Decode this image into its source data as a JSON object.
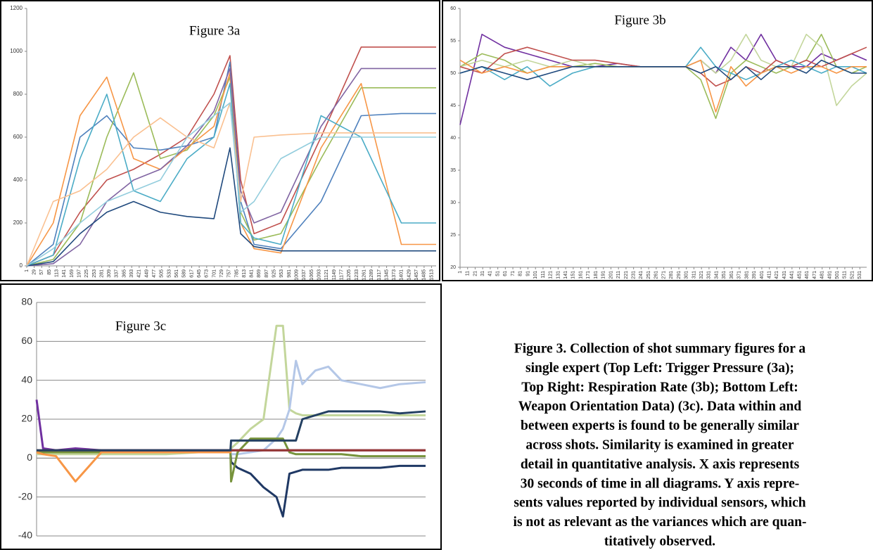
{
  "chart_data": [
    {
      "type": "line",
      "title": "Figure 3a",
      "ylim": [
        0,
        1200
      ],
      "yticks": [
        0,
        200,
        400,
        600,
        800,
        1000,
        1200
      ],
      "xlim": [
        1,
        1530
      ],
      "xticks": [
        1,
        29,
        57,
        85,
        113,
        141,
        169,
        197,
        225,
        253,
        281,
        309,
        337,
        365,
        393,
        421,
        449,
        477,
        505,
        533,
        561,
        589,
        617,
        645,
        673,
        701,
        729,
        757,
        785,
        813,
        841,
        869,
        897,
        925,
        953,
        981,
        1009,
        1037,
        1065,
        1093,
        1121,
        1149,
        1177,
        1205,
        1233,
        1261,
        1289,
        1317,
        1345,
        1373,
        1401,
        1429,
        1457,
        1485,
        1513
      ],
      "grid": false,
      "x": [
        1,
        100,
        200,
        300,
        400,
        500,
        600,
        700,
        760,
        800,
        850,
        950,
        1100,
        1250,
        1400,
        1530
      ],
      "series": [
        {
          "color": "#c0504d",
          "values": [
            0,
            50,
            250,
            400,
            450,
            520,
            600,
            800,
            980,
            400,
            150,
            200,
            600,
            1020,
            1020,
            1020
          ]
        },
        {
          "color": "#4f81bd",
          "values": [
            0,
            100,
            600,
            700,
            550,
            540,
            560,
            600,
            950,
            300,
            100,
            80,
            300,
            700,
            710,
            710
          ]
        },
        {
          "color": "#9bbb59",
          "values": [
            0,
            30,
            200,
            600,
            900,
            500,
            540,
            700,
            880,
            250,
            120,
            150,
            500,
            830,
            830,
            830
          ]
        },
        {
          "color": "#f79646",
          "values": [
            0,
            200,
            700,
            880,
            500,
            450,
            550,
            650,
            900,
            200,
            80,
            60,
            550,
            850,
            100,
            100
          ]
        },
        {
          "color": "#8064a2",
          "values": [
            0,
            10,
            100,
            300,
            400,
            450,
            560,
            720,
            920,
            350,
            200,
            250,
            650,
            920,
            920,
            920
          ]
        },
        {
          "color": "#4bacc6",
          "values": [
            0,
            50,
            500,
            800,
            350,
            300,
            500,
            600,
            850,
            200,
            130,
            100,
            700,
            600,
            200,
            200
          ]
        },
        {
          "color": "#fac090",
          "values": [
            0,
            300,
            350,
            450,
            600,
            690,
            600,
            550,
            760,
            300,
            600,
            610,
            620,
            620,
            620,
            620
          ]
        },
        {
          "color": "#1f497d",
          "values": [
            0,
            20,
            150,
            250,
            300,
            250,
            230,
            220,
            550,
            150,
            90,
            70,
            70,
            70,
            70,
            70
          ]
        },
        {
          "color": "#93cddd",
          "values": [
            0,
            80,
            200,
            300,
            350,
            400,
            600,
            700,
            760,
            250,
            300,
            500,
            600,
            600,
            600,
            600
          ]
        }
      ]
    },
    {
      "type": "line",
      "title": "Figure 3b",
      "ylim": [
        20,
        60
      ],
      "yticks": [
        20,
        25,
        30,
        35,
        40,
        45,
        50,
        55,
        60
      ],
      "xlim": [
        1,
        540
      ],
      "xticks": [
        1,
        11,
        21,
        31,
        41,
        51,
        61,
        71,
        81,
        91,
        101,
        111,
        121,
        131,
        141,
        151,
        161,
        171,
        181,
        191,
        201,
        211,
        221,
        231,
        241,
        251,
        261,
        271,
        281,
        291,
        301,
        311,
        321,
        331,
        341,
        351,
        361,
        371,
        381,
        391,
        401,
        411,
        421,
        431,
        441,
        451,
        461,
        471,
        481,
        491,
        501,
        511,
        521,
        531
      ],
      "grid": false,
      "x": [
        1,
        30,
        60,
        90,
        120,
        150,
        180,
        210,
        240,
        270,
        300,
        320,
        340,
        360,
        380,
        400,
        420,
        440,
        460,
        480,
        500,
        520,
        540
      ],
      "series": [
        {
          "color": "#7030a0",
          "values": [
            42,
            56,
            54,
            53,
            52,
            51,
            51,
            51.5,
            51,
            51,
            51,
            52,
            50,
            54,
            52,
            56,
            52,
            51,
            51,
            53,
            52,
            53,
            52
          ]
        },
        {
          "color": "#9bbb59",
          "values": [
            51,
            53,
            52,
            50,
            51,
            51,
            51.5,
            51,
            51,
            51,
            51,
            49,
            43,
            50,
            52,
            51,
            50,
            51,
            52,
            56,
            51,
            50,
            51
          ]
        },
        {
          "color": "#c3d69b",
          "values": [
            51,
            52,
            51,
            52,
            51,
            52,
            51,
            51,
            51,
            51,
            51,
            52,
            50,
            52,
            56,
            52,
            51,
            51,
            56,
            54,
            45,
            48,
            50
          ]
        },
        {
          "color": "#c0504d",
          "values": [
            51,
            50,
            53,
            54,
            53,
            52,
            52,
            51.5,
            51,
            51,
            51,
            50,
            48,
            49,
            51,
            50,
            52,
            51,
            52,
            51,
            52,
            53,
            54
          ]
        },
        {
          "color": "#4bacc6",
          "values": [
            50,
            51,
            49,
            51,
            48,
            50,
            51,
            51,
            51,
            51,
            51,
            54,
            51,
            50,
            49,
            50,
            51,
            52,
            51,
            50,
            51,
            51,
            50
          ]
        },
        {
          "color": "#f79646",
          "values": [
            52,
            50,
            51,
            50,
            51,
            51,
            51,
            51,
            51,
            51,
            51,
            52,
            44,
            51,
            48,
            50,
            51,
            50,
            51,
            51,
            50,
            51,
            51
          ]
        },
        {
          "color": "#1f497d",
          "values": [
            50,
            51,
            50,
            49,
            50,
            51,
            51,
            51,
            51,
            51,
            51,
            50,
            51,
            49,
            51,
            49,
            51,
            51,
            50,
            52,
            51,
            50,
            50
          ]
        }
      ]
    },
    {
      "type": "line",
      "title": "Figure 3c",
      "ylim": [
        -40,
        80
      ],
      "yticks": [
        -40,
        -20,
        0,
        20,
        40,
        60,
        80
      ],
      "xlim": [
        0,
        600
      ],
      "grid": true,
      "x": [
        0,
        10,
        30,
        60,
        100,
        150,
        200,
        250,
        299,
        300,
        310,
        330,
        350,
        370,
        380,
        390,
        400,
        410,
        430,
        450,
        470,
        500,
        530,
        560,
        600
      ],
      "series": [
        {
          "color": "#c3d69b",
          "values": [
            2,
            2,
            2,
            2,
            2,
            2,
            2,
            3,
            3,
            5,
            8,
            15,
            20,
            68,
            68,
            25,
            23,
            22,
            22,
            22,
            22,
            22,
            22,
            22,
            22
          ]
        },
        {
          "color": "#1f3864",
          "values": [
            3,
            3,
            3,
            3,
            3,
            3,
            3,
            3,
            4,
            -2,
            -5,
            -8,
            -15,
            -20,
            -30,
            -8,
            -7,
            -6,
            -6,
            -6,
            -5,
            -5,
            -5,
            -4,
            -4
          ]
        },
        {
          "color": "#b4c7e7",
          "values": [
            3,
            3,
            3,
            3,
            3,
            3,
            3,
            3,
            3,
            2,
            2,
            3,
            4,
            10,
            15,
            25,
            50,
            38,
            45,
            47,
            40,
            38,
            36,
            38,
            39
          ]
        },
        {
          "color": "#77933c",
          "values": [
            3,
            3,
            3,
            3,
            3,
            3,
            3,
            3,
            3,
            -12,
            3,
            10,
            10,
            10,
            10,
            3,
            2,
            2,
            2,
            2,
            2,
            1,
            1,
            1,
            1
          ]
        },
        {
          "color": "#f79646",
          "values": [
            3,
            2,
            1,
            -12,
            3,
            3,
            3,
            3,
            3,
            4,
            4,
            4,
            4,
            4,
            4,
            4,
            4,
            4,
            4,
            4,
            4,
            4,
            4,
            4,
            4
          ]
        },
        {
          "color": "#7030a0",
          "values": [
            30,
            5,
            4,
            5,
            4,
            4,
            4,
            4,
            4,
            4,
            4,
            4,
            4,
            4,
            4,
            4,
            4,
            4,
            4,
            4,
            4,
            4,
            4,
            4,
            4
          ]
        },
        {
          "color": "#953735",
          "values": [
            4,
            4,
            4,
            4,
            4,
            4,
            4,
            4,
            4,
            4,
            4,
            4,
            4,
            4,
            4,
            4,
            4,
            4,
            4,
            4,
            4,
            4,
            4,
            4,
            4
          ]
        },
        {
          "color": "#244062",
          "values": [
            4,
            4,
            4,
            4,
            4,
            4,
            4,
            4,
            4,
            9,
            9,
            9,
            9,
            9,
            9,
            9,
            9,
            20,
            22,
            24,
            24,
            24,
            24,
            23,
            24
          ]
        }
      ]
    }
  ],
  "caption": {
    "lines": [
      "Figure 3. Collection of shot summary figures for a",
      "single expert (Top Left: Trigger Pressure (3a);",
      "Top Right: Respiration Rate (3b); Bottom Left:",
      "Weapon Orientation Data) (3c). Data within and",
      "between experts is found to be generally similar",
      "across shots. Similarity is examined in greater",
      "detail in quantitative analysis.  X axis represents",
      "30 seconds of time in all diagrams.  Y axis repre-",
      "sents values reported by individual sensors, which",
      "is not as relevant as the variances which are quan-",
      "titatively observed."
    ]
  }
}
